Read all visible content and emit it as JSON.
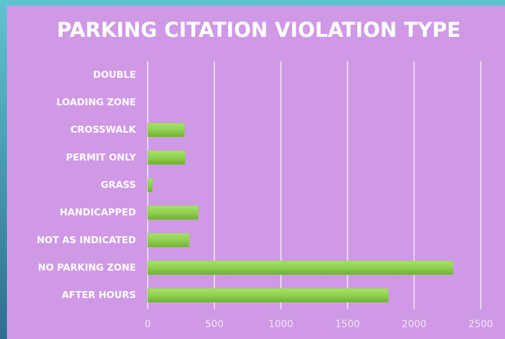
{
  "chart_data": {
    "type": "hbar",
    "title": "PARKING CITATION VIOLATION TYPE",
    "categories": [
      "DOUBLE",
      "LOADING ZONE",
      "CROSSWALK",
      "PERMIT ONLY",
      "GRASS",
      "HANDICAPPED",
      "NOT AS INDICATED",
      "NO PARKING ZONE",
      "AFTER HOURS"
    ],
    "values": [
      0,
      0,
      276,
      281,
      36,
      380,
      312,
      2292,
      1807
    ],
    "color": "#8fd14f",
    "xlim": [
      0,
      2500
    ],
    "xticks": [
      0,
      500,
      1000,
      1500,
      2000,
      2500
    ],
    "grid": true
  }
}
